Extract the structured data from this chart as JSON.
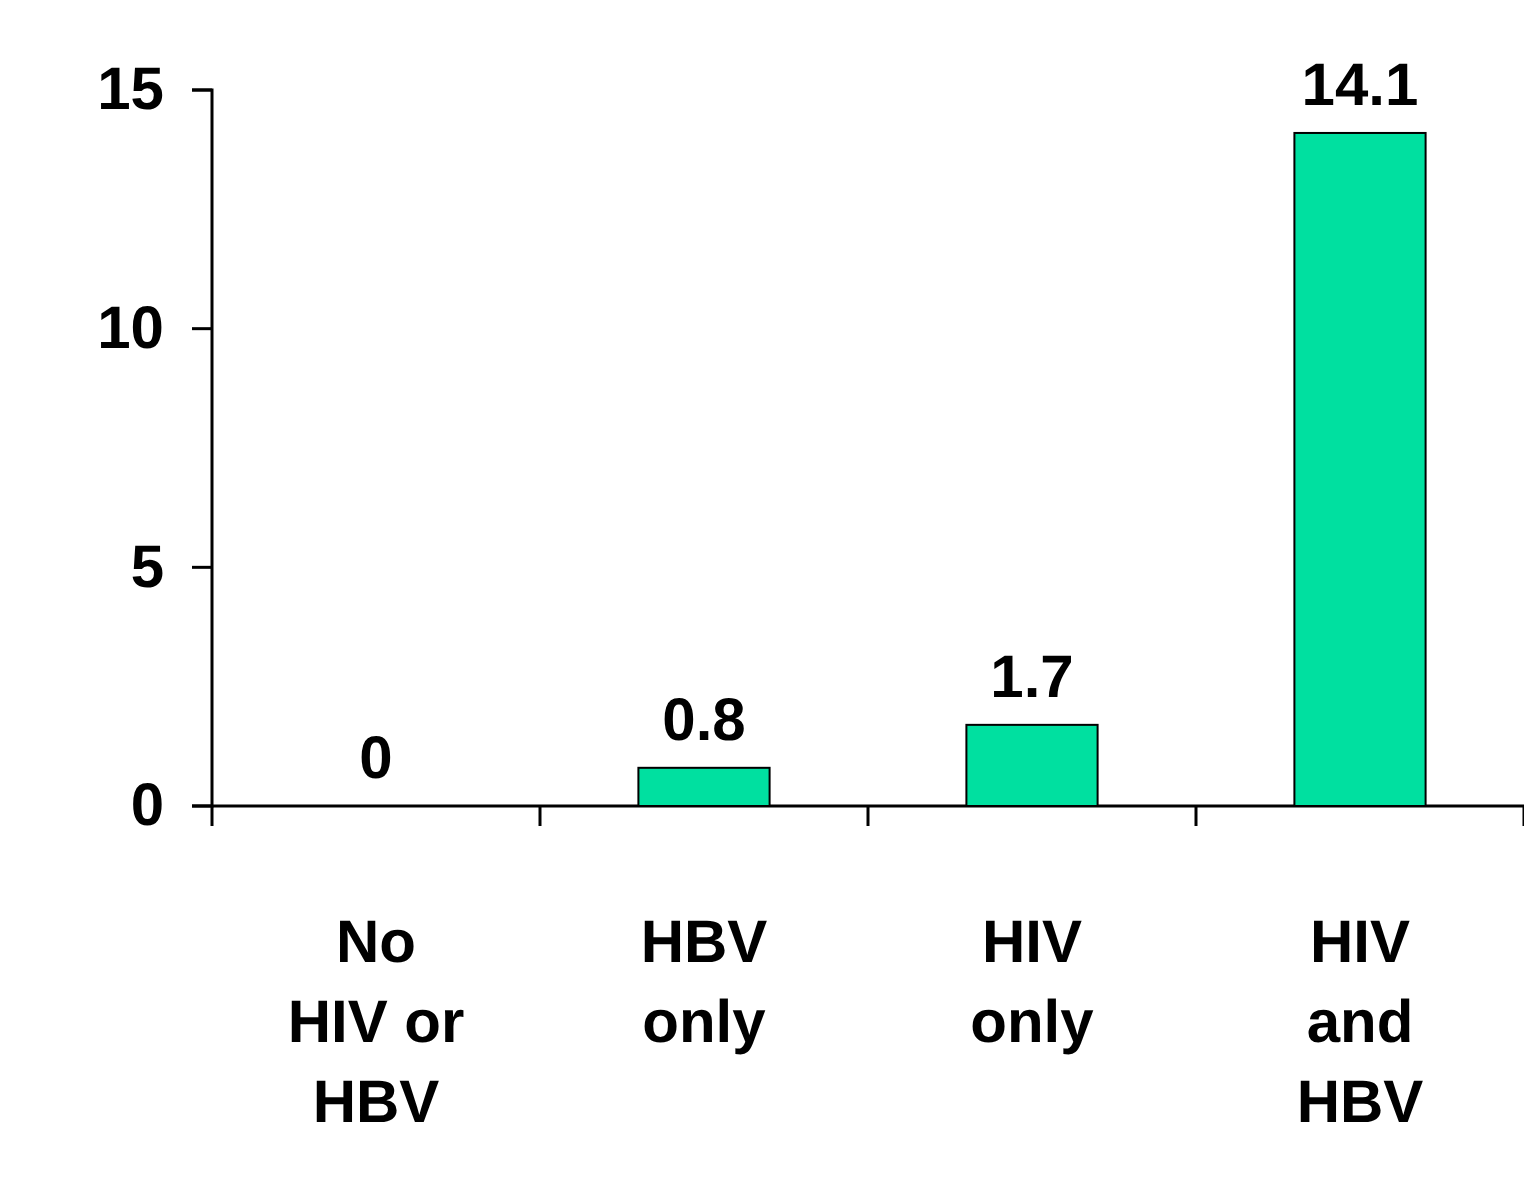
{
  "chart_data": {
    "type": "bar",
    "categories": [
      "No HIV or HBV",
      "HBV only",
      "HIV only",
      "HIV and HBV"
    ],
    "values": [
      0,
      0.8,
      1.7,
      14.1
    ],
    "color": "#00e0a0",
    "ylim": [
      0,
      15
    ],
    "yticks": [
      0,
      5,
      10,
      15
    ],
    "data_labels": true
  }
}
